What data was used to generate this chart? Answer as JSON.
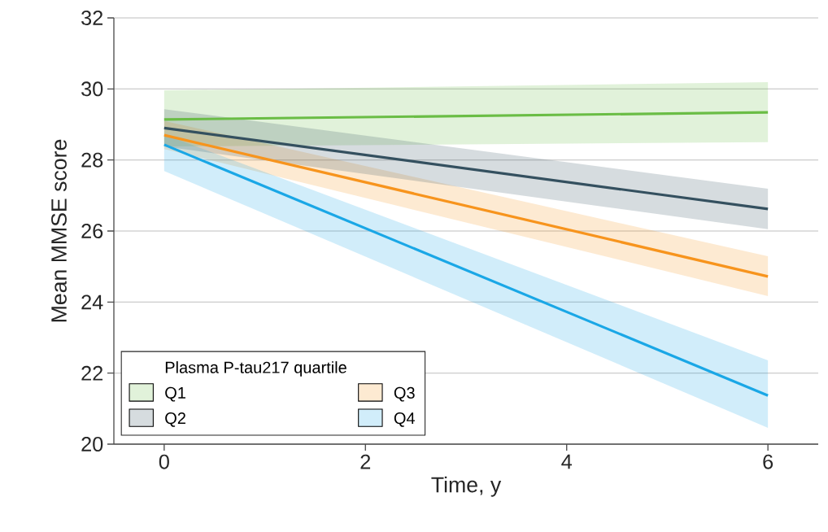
{
  "chart_data": {
    "type": "line",
    "xlabel": "Time, y",
    "ylabel": "Mean MMSE score",
    "legend_title": "Plasma P-tau217 quartile",
    "x": [
      0,
      6
    ],
    "xlim": [
      -0.5,
      6.5
    ],
    "ylim": [
      20,
      32
    ],
    "xticks": [
      0,
      2,
      4,
      6
    ],
    "yticks": [
      20,
      22,
      24,
      26,
      28,
      30,
      32
    ],
    "grid": "y",
    "legend": "bottom left",
    "marker": "none",
    "line_style": "solid",
    "series": [
      {
        "name": "Q1",
        "color": "#6abd45",
        "values": [
          29.14,
          29.34
        ],
        "lower": [
          28.38,
          28.5
        ],
        "upper": [
          29.96,
          30.19
        ]
      },
      {
        "name": "Q2",
        "color": "#34505f",
        "values": [
          28.9,
          26.62
        ],
        "lower": [
          28.38,
          26.05
        ],
        "upper": [
          29.43,
          27.19
        ]
      },
      {
        "name": "Q3",
        "color": "#f7941d",
        "values": [
          28.7,
          24.72
        ],
        "lower": [
          28.31,
          24.17
        ],
        "upper": [
          29.1,
          25.29
        ]
      },
      {
        "name": "Q4",
        "color": "#1aa7e6",
        "values": [
          28.43,
          21.37
        ],
        "lower": [
          27.69,
          20.46
        ],
        "upper": [
          28.72,
          22.36
        ]
      }
    ]
  }
}
